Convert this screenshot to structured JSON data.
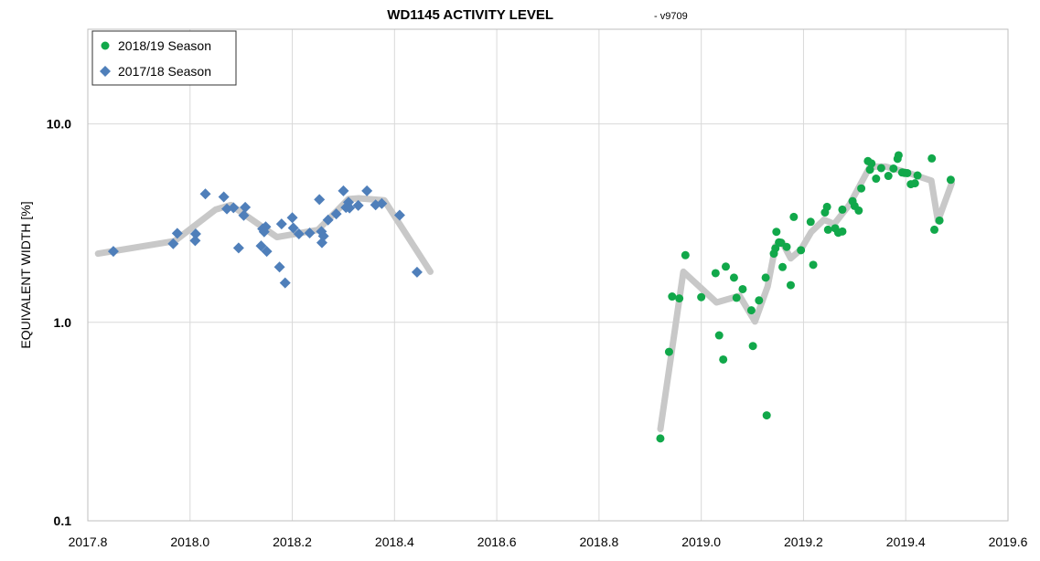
{
  "chart_data": {
    "type": "scatter",
    "title": "WD1145 ACTIVITY LEVEL",
    "subtitle": "-  v9709",
    "xlabel": "",
    "ylabel": "EQUIVALENT WIDTH [%]",
    "xlim": [
      2017.8,
      2019.6
    ],
    "ylim": [
      0.1,
      30
    ],
    "yscale": "log",
    "grid": true,
    "legend_position": "top-left",
    "x_ticks": [
      "2017.8",
      "2018.0",
      "2018.2",
      "2018.4",
      "2018.6",
      "2018.8",
      "2019.0",
      "2019.2",
      "2019.4",
      "2019.6"
    ],
    "y_ticks": [
      "0.1",
      "1.0",
      "10.0"
    ],
    "series": [
      {
        "name": "2018/19 Season",
        "marker": "circle",
        "color": "#11a84a",
        "points": [
          [
            2018.92,
            0.26
          ],
          [
            2018.937,
            0.71
          ],
          [
            2018.943,
            1.35
          ],
          [
            2018.957,
            1.32
          ],
          [
            2018.969,
            2.18
          ],
          [
            2019.0,
            1.34
          ],
          [
            2019.028,
            1.77
          ],
          [
            2019.035,
            0.86
          ],
          [
            2019.043,
            0.65
          ],
          [
            2019.048,
            1.91
          ],
          [
            2019.064,
            1.68
          ],
          [
            2019.069,
            1.33
          ],
          [
            2019.081,
            1.47
          ],
          [
            2019.098,
            1.15
          ],
          [
            2019.101,
            0.76
          ],
          [
            2019.113,
            1.29
          ],
          [
            2019.126,
            1.68
          ],
          [
            2019.128,
            0.34
          ],
          [
            2019.142,
            2.22
          ],
          [
            2019.145,
            2.36
          ],
          [
            2019.147,
            2.86
          ],
          [
            2019.152,
            2.53
          ],
          [
            2019.156,
            2.52
          ],
          [
            2019.159,
            1.9
          ],
          [
            2019.167,
            2.4
          ],
          [
            2019.175,
            1.54
          ],
          [
            2019.181,
            3.4
          ],
          [
            2019.195,
            2.31
          ],
          [
            2019.214,
            3.21
          ],
          [
            2019.219,
            1.95
          ],
          [
            2019.242,
            3.58
          ],
          [
            2019.246,
            3.82
          ],
          [
            2019.248,
            2.93
          ],
          [
            2019.262,
            2.98
          ],
          [
            2019.268,
            2.83
          ],
          [
            2019.276,
            3.7
          ],
          [
            2019.276,
            2.87
          ],
          [
            2019.296,
            4.08
          ],
          [
            2019.3,
            3.86
          ],
          [
            2019.308,
            3.66
          ],
          [
            2019.313,
            4.73
          ],
          [
            2019.326,
            6.5
          ],
          [
            2019.33,
            5.88
          ],
          [
            2019.333,
            6.32
          ],
          [
            2019.342,
            5.3
          ],
          [
            2019.352,
            5.99
          ],
          [
            2019.366,
            5.47
          ],
          [
            2019.376,
            5.96
          ],
          [
            2019.384,
            6.67
          ],
          [
            2019.386,
            6.95
          ],
          [
            2019.393,
            5.69
          ],
          [
            2019.398,
            5.66
          ],
          [
            2019.403,
            5.65
          ],
          [
            2019.41,
            4.97
          ],
          [
            2019.418,
            5.02
          ],
          [
            2019.423,
            5.5
          ],
          [
            2019.451,
            6.7
          ],
          [
            2019.456,
            2.93
          ],
          [
            2019.466,
            3.26
          ],
          [
            2019.488,
            5.23
          ]
        ]
      },
      {
        "name": "2017/18 Season",
        "marker": "diamond",
        "color": "#4f7fba",
        "points": [
          [
            2017.85,
            2.28
          ],
          [
            2017.967,
            2.49
          ],
          [
            2017.975,
            2.81
          ],
          [
            2018.01,
            2.58
          ],
          [
            2018.011,
            2.79
          ],
          [
            2018.03,
            4.44
          ],
          [
            2018.066,
            4.29
          ],
          [
            2018.072,
            3.73
          ],
          [
            2018.085,
            3.78
          ],
          [
            2018.095,
            2.37
          ],
          [
            2018.105,
            3.46
          ],
          [
            2018.108,
            3.8
          ],
          [
            2018.139,
            2.43
          ],
          [
            2018.142,
            2.96
          ],
          [
            2018.145,
            2.86
          ],
          [
            2018.148,
            3.03
          ],
          [
            2018.15,
            2.28
          ],
          [
            2018.175,
            1.9
          ],
          [
            2018.179,
            3.13
          ],
          [
            2018.186,
            1.58
          ],
          [
            2018.2,
            3.37
          ],
          [
            2018.202,
            2.99
          ],
          [
            2018.213,
            2.79
          ],
          [
            2018.234,
            2.82
          ],
          [
            2018.253,
            4.16
          ],
          [
            2018.257,
            2.87
          ],
          [
            2018.258,
            2.52
          ],
          [
            2018.261,
            2.72
          ],
          [
            2018.27,
            3.28
          ],
          [
            2018.286,
            3.52
          ],
          [
            2018.3,
            4.6
          ],
          [
            2018.305,
            3.79
          ],
          [
            2018.31,
            4.03
          ],
          [
            2018.312,
            3.77
          ],
          [
            2018.329,
            3.88
          ],
          [
            2018.346,
            4.6
          ],
          [
            2018.363,
            3.91
          ],
          [
            2018.375,
            3.97
          ],
          [
            2018.41,
            3.47
          ],
          [
            2018.444,
            1.79
          ]
        ]
      },
      {
        "name": "",
        "type": "line",
        "color": "#c8c8c8",
        "points": [
          [
            2017.82,
            2.22
          ],
          [
            2017.97,
            2.57
          ],
          [
            2018.05,
            3.7
          ],
          [
            2018.08,
            3.9
          ],
          [
            2018.17,
            2.69
          ],
          [
            2018.25,
            2.92
          ],
          [
            2018.31,
            4.18
          ],
          [
            2018.33,
            4.22
          ],
          [
            2018.38,
            4.12
          ],
          [
            2018.47,
            1.8
          ]
        ]
      },
      {
        "name": "",
        "type": "line",
        "color": "#c8c8c8",
        "points": [
          [
            2018.92,
            0.29
          ],
          [
            2018.965,
            1.8
          ],
          [
            2019.03,
            1.26
          ],
          [
            2019.075,
            1.36
          ],
          [
            2019.105,
            1.01
          ],
          [
            2019.13,
            1.52
          ],
          [
            2019.145,
            2.42
          ],
          [
            2019.158,
            2.54
          ],
          [
            2019.175,
            2.1
          ],
          [
            2019.195,
            2.33
          ],
          [
            2019.215,
            2.85
          ],
          [
            2019.24,
            3.29
          ],
          [
            2019.26,
            3.13
          ],
          [
            2019.29,
            3.92
          ],
          [
            2019.33,
            6.09
          ],
          [
            2019.36,
            6.1
          ],
          [
            2019.4,
            5.72
          ],
          [
            2019.45,
            5.18
          ],
          [
            2019.463,
            3.24
          ],
          [
            2019.49,
            5.02
          ]
        ]
      }
    ]
  }
}
